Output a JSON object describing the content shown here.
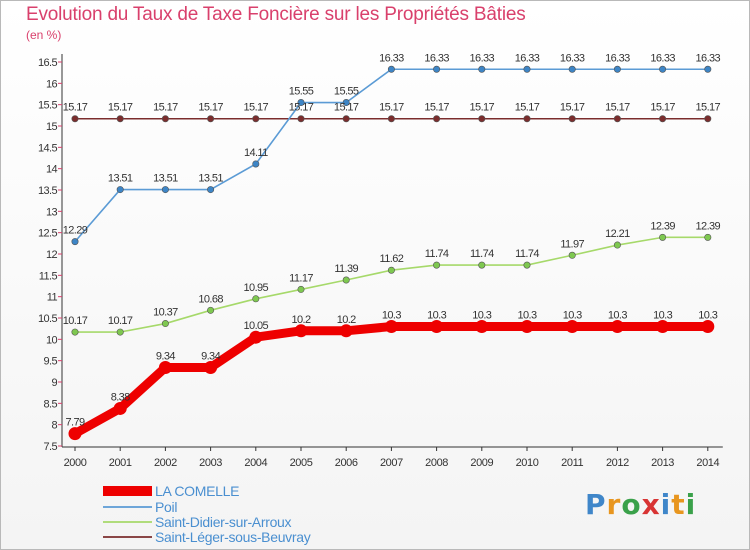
{
  "chart_data": {
    "type": "line",
    "title": "Evolution du Taux de Taxe Foncière sur les Propriétés Bâties",
    "ylabel": "(en %)",
    "xlabel": "",
    "ylim": [
      7.5,
      16.5
    ],
    "yticks": [
      "7.5",
      "8",
      "8.5",
      "9",
      "9.5",
      "10",
      "10.5",
      "11",
      "11.5",
      "12",
      "12.5",
      "13",
      "13.5",
      "14",
      "14.5",
      "15",
      "15.5",
      "16",
      "16.5"
    ],
    "categories": [
      "2000",
      "2001",
      "2002",
      "2003",
      "2004",
      "2005",
      "2006",
      "2007",
      "2008",
      "2009",
      "2010",
      "2011",
      "2012",
      "2013",
      "2014"
    ],
    "series": [
      {
        "name": "LA COMELLE",
        "color": "#ee0000",
        "point_color": "#ee0000",
        "values": [
          7.79,
          8.38,
          9.34,
          9.34,
          10.05,
          10.2,
          10.2,
          10.3,
          10.3,
          10.3,
          10.3,
          10.3,
          10.3,
          10.3,
          10.3
        ],
        "labels": [
          "7.79",
          "8.38",
          "9.34",
          "9.34",
          "10.05",
          "10.2",
          "10.2",
          "10.3",
          "10.3",
          "10.3",
          "10.3",
          "10.3",
          "10.3",
          "10.3",
          "10.3"
        ]
      },
      {
        "name": "Poil",
        "color": "#5b9bd5",
        "point_color": "#3d85c6",
        "values": [
          12.29,
          13.51,
          13.51,
          13.51,
          14.11,
          15.55,
          15.55,
          16.33,
          16.33,
          16.33,
          16.33,
          16.33,
          16.33,
          16.33,
          16.33
        ],
        "labels": [
          "12.29",
          "13.51",
          "13.51",
          "13.51",
          "14.11",
          "15.55",
          "15.55",
          "16.33",
          "16.33",
          "16.33",
          "16.33",
          "16.33",
          "16.33",
          "16.33",
          "16.33"
        ]
      },
      {
        "name": "Saint-Didier-sur-Arroux",
        "color": "#a6d96a",
        "point_color": "#7ec850",
        "values": [
          10.17,
          10.17,
          10.37,
          10.68,
          10.95,
          11.17,
          11.39,
          11.62,
          11.74,
          11.74,
          11.74,
          11.97,
          12.21,
          12.39,
          12.39
        ],
        "labels": [
          "10.17",
          "10.17",
          "10.37",
          "10.68",
          "10.95",
          "11.17",
          "11.39",
          "11.62",
          "11.74",
          "11.74",
          "11.74",
          "11.97",
          "12.21",
          "12.39",
          "12.39"
        ]
      },
      {
        "name": "Saint-Léger-sous-Beuvray",
        "color": "#7b2d2d",
        "point_color": "#7b2d2d",
        "values": [
          15.17,
          15.17,
          15.17,
          15.17,
          15.17,
          15.17,
          15.17,
          15.17,
          15.17,
          15.17,
          15.17,
          15.17,
          15.17,
          15.17,
          15.17
        ],
        "labels": [
          "15.17",
          "15.17",
          "15.17",
          "15.17",
          "15.17",
          "15.17",
          "15.17",
          "15.17",
          "15.17",
          "15.17",
          "15.17",
          "15.17",
          "15.17",
          "15.17",
          "15.17"
        ]
      }
    ],
    "legend_position": "bottom-left",
    "grid": false
  },
  "logo": {
    "p": "P",
    "r": "r",
    "o": "o",
    "x": "x",
    "i1": "i",
    "t": "t",
    "i2": "i"
  }
}
